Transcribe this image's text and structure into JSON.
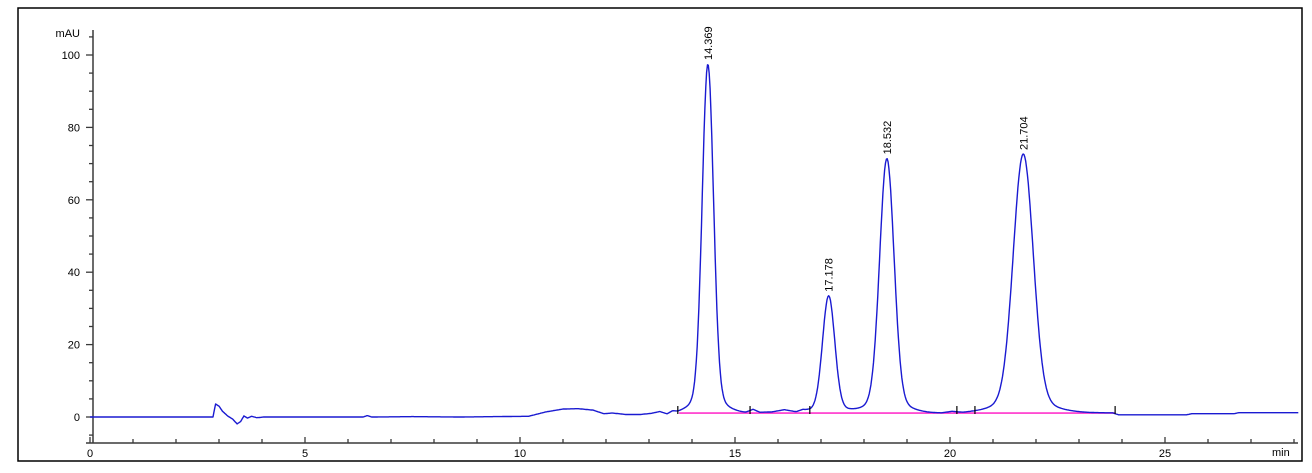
{
  "window": {
    "background": "#ffffff",
    "frame_color": "#000000",
    "axis_color": "#3a3a3a",
    "text_color": "#000000"
  },
  "chart_data": {
    "type": "line",
    "title": "",
    "xlabel": "min",
    "ylabel": "mAU",
    "xlim": [
      0,
      28.1
    ],
    "ylim": [
      -7,
      106
    ],
    "grid": false,
    "legend": "none",
    "x_major_ticks": [
      0,
      5,
      10,
      15,
      20,
      25
    ],
    "x_minor_step": 1,
    "y_major_ticks": [
      0,
      20,
      40,
      60,
      80,
      100
    ],
    "y_minor_step": 5,
    "trace_color": "#1a1ad1",
    "integration_baseline_color": "#ff33cc",
    "peaks": [
      {
        "rt": 14.369,
        "label": "14.369",
        "height_mAU": 96.3,
        "sigma_min": 0.13
      },
      {
        "rt": 17.178,
        "label": "17.178",
        "height_mAU": 32.3,
        "sigma_min": 0.14
      },
      {
        "rt": 18.532,
        "label": "18.532",
        "height_mAU": 70.3,
        "sigma_min": 0.165
      },
      {
        "rt": 21.704,
        "label": "21.704",
        "height_mAU": 71.5,
        "sigma_min": 0.23
      }
    ],
    "integration_baseline": {
      "start_min": 13.7,
      "end_min": 23.84,
      "level_mAU": 1.1
    },
    "integration_marks_min": [
      13.67,
      15.35,
      16.74,
      20.16,
      20.58,
      23.84
    ],
    "baseline_points": [
      [
        0,
        0
      ],
      [
        2.86,
        0
      ],
      [
        2.92,
        3.6
      ],
      [
        3.0,
        3.0
      ],
      [
        3.08,
        1.6
      ],
      [
        3.2,
        0.3
      ],
      [
        3.32,
        -0.6
      ],
      [
        3.42,
        -1.9
      ],
      [
        3.5,
        -1.3
      ],
      [
        3.58,
        0.3
      ],
      [
        3.66,
        -0.3
      ],
      [
        3.76,
        0.2
      ],
      [
        3.88,
        -0.2
      ],
      [
        4.05,
        0
      ],
      [
        6.35,
        0
      ],
      [
        6.45,
        0.4
      ],
      [
        6.55,
        0
      ],
      [
        7.5,
        0.1
      ],
      [
        8.6,
        0
      ],
      [
        10.2,
        0.2
      ],
      [
        10.6,
        1.4
      ],
      [
        11.0,
        2.2
      ],
      [
        11.35,
        2.3
      ],
      [
        11.7,
        1.9
      ],
      [
        11.95,
        0.9
      ],
      [
        12.15,
        1.1
      ],
      [
        12.45,
        0.7
      ],
      [
        12.8,
        0.7
      ],
      [
        13.05,
        1.0
      ],
      [
        13.25,
        1.5
      ],
      [
        13.42,
        0.8
      ],
      [
        13.55,
        1.5
      ],
      [
        13.68,
        1.1
      ],
      [
        13.85,
        1.2
      ],
      [
        15.25,
        1.2
      ],
      [
        15.42,
        2.1
      ],
      [
        15.58,
        1.3
      ],
      [
        15.85,
        1.4
      ],
      [
        16.15,
        2.0
      ],
      [
        16.42,
        1.3
      ],
      [
        16.58,
        1.7
      ],
      [
        16.78,
        1.2
      ],
      [
        17.6,
        1.15
      ],
      [
        19.8,
        1.1
      ],
      [
        20.05,
        1.5
      ],
      [
        20.3,
        1.1
      ],
      [
        20.5,
        1.15
      ],
      [
        23.78,
        1.15
      ],
      [
        23.92,
        0.6
      ],
      [
        25.5,
        0.6
      ],
      [
        25.62,
        0.9
      ],
      [
        26.6,
        0.9
      ],
      [
        26.72,
        1.2
      ],
      [
        28.1,
        1.2
      ]
    ]
  }
}
